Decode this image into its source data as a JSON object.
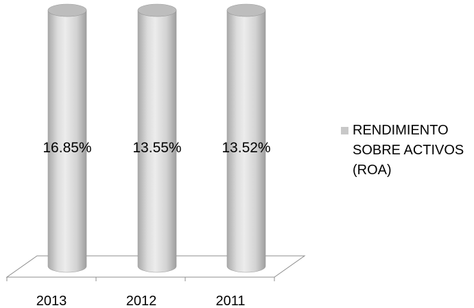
{
  "chart_data": {
    "type": "bar",
    "bar_shape": "cylinder",
    "categories": [
      "2013",
      "2012",
      "2011"
    ],
    "series": [
      {
        "name": "RENDIMIENTO SOBRE ACTIVOS (ROA)",
        "values": [
          16.85,
          13.55,
          13.52
        ],
        "data_labels": [
          "16.85%",
          "13.55%",
          "13.52%"
        ],
        "color": "#c8c8c8"
      }
    ],
    "legend_position": "right",
    "grid": false,
    "y_axis_shown": false
  }
}
